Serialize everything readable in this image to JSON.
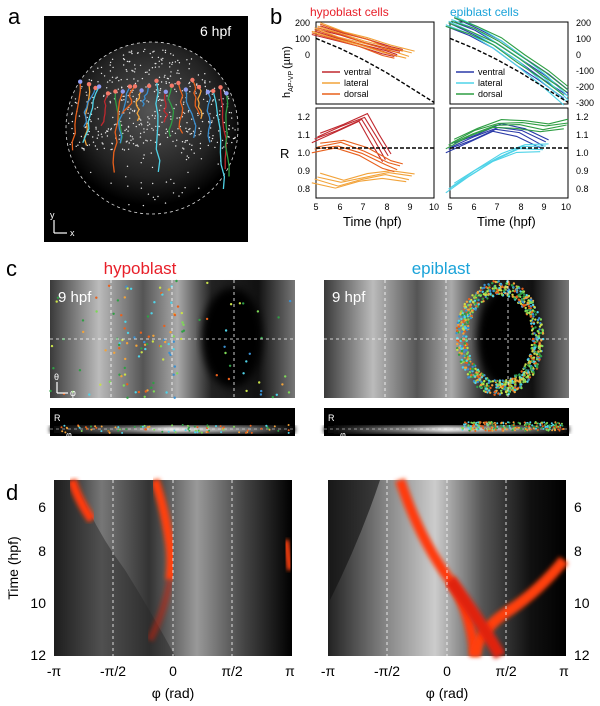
{
  "panels": {
    "a": "a",
    "b": "b",
    "c": "c",
    "d": "d"
  },
  "panel_a": {
    "time_label": "6 hpf",
    "axis_y": "y",
    "axis_x": "x"
  },
  "panel_b": {
    "hypoblast_title": "hypoblast cells",
    "epiblast_title": "epiblast cells",
    "title_colors": {
      "hypoblast": "#e8202a",
      "epiblast": "#1aa3d9"
    },
    "ylabel_top": "h",
    "ylabel_top_sub": "AP-VP",
    "ylabel_top_unit": "(µm)",
    "ylabel_bottom": "R",
    "xlabel": "Time (hpf)",
    "legend_hypoblast": [
      {
        "name": "ventral",
        "color": "#c0282e"
      },
      {
        "name": "lateral",
        "color": "#f2a33a"
      },
      {
        "name": "dorsal",
        "color": "#e8601c"
      }
    ],
    "legend_epiblast": [
      {
        "name": "ventral",
        "color": "#2a3aa8"
      },
      {
        "name": "lateral",
        "color": "#4fd3e8"
      },
      {
        "name": "dorsal",
        "color": "#2f9e44"
      }
    ],
    "top_y_ticks": [
      "200",
      "100",
      "0",
      "-100",
      "-200",
      "-300"
    ],
    "bottom_y_ticks": [
      "1.2",
      "1.1",
      "1.0",
      "0.9",
      "0.8"
    ],
    "x_ticks": [
      "5",
      "6",
      "7",
      "8",
      "9",
      "10"
    ]
  },
  "panel_c": {
    "hypoblast_title": "hypoblast",
    "epiblast_title": "epiblast",
    "time_label": "9 hpf",
    "axis_theta": "θ",
    "axis_phi": "φ",
    "axis_R": "R"
  },
  "panel_d": {
    "ylabel": "Time (hpf)",
    "xlabel": "φ (rad)",
    "y_ticks": [
      "6",
      "8",
      "10",
      "12"
    ],
    "x_ticks": [
      "-π",
      "-π/2",
      "0",
      "π/2",
      "π"
    ]
  },
  "chart_data": [
    {
      "type": "line",
      "title": "hypoblast cells",
      "xlabel": "Time (hpf)",
      "ylabel": "h AP-VP (µm)",
      "xlim": [
        5,
        10
      ],
      "ylim": [
        -300,
        200
      ],
      "series": [
        {
          "name": "ventral",
          "x": [
            5,
            6,
            7,
            8,
            8.5
          ],
          "y": [
            150,
            110,
            70,
            30,
            10
          ]
        },
        {
          "name": "lateral",
          "x": [
            5,
            6,
            7,
            8,
            9
          ],
          "y": [
            170,
            120,
            80,
            40,
            0
          ]
        },
        {
          "name": "dorsal",
          "x": [
            5,
            6,
            7,
            8,
            8.5
          ],
          "y": [
            160,
            115,
            70,
            20,
            0
          ]
        },
        {
          "x": [
            5,
            6,
            7,
            8,
            9,
            10
          ],
          "y": [
            100,
            40,
            -30,
            -110,
            -200,
            -290
          ]
        }
      ]
    },
    {
      "type": "line",
      "title": "epiblast cells",
      "xlabel": "Time (hpf)",
      "ylabel": "h AP-VP (µm)",
      "xlim": [
        5,
        10
      ],
      "ylim": [
        -300,
        200
      ],
      "series": [
        {
          "name": "ventral",
          "x": [
            5,
            6,
            7,
            8,
            9,
            10
          ],
          "y": [
            200,
            140,
            60,
            -40,
            -140,
            -240
          ]
        },
        {
          "name": "lateral",
          "x": [
            5,
            6,
            7,
            8,
            9,
            10
          ],
          "y": [
            210,
            150,
            60,
            -40,
            -160,
            -280
          ]
        },
        {
          "name": "dorsal",
          "x": [
            5,
            6,
            7,
            8,
            9,
            10
          ],
          "y": [
            200,
            150,
            80,
            -20,
            -120,
            -220
          ]
        },
        {
          "x": [
            5,
            6,
            7,
            8,
            9,
            10
          ],
          "y": [
            100,
            40,
            -30,
            -110,
            -200,
            -290
          ]
        }
      ]
    },
    {
      "type": "line",
      "xlabel": "Time (hpf)",
      "ylabel": "R",
      "xlim": [
        5,
        10
      ],
      "ylim": [
        0.75,
        1.2
      ],
      "series": [
        {
          "name": "ventral",
          "x": [
            5,
            6,
            7,
            7.5,
            8
          ],
          "y": [
            1.05,
            1.1,
            1.15,
            1.05,
            0.95
          ]
        },
        {
          "name": "lateral",
          "x": [
            5,
            6,
            7,
            8,
            9
          ],
          "y": [
            0.85,
            0.82,
            0.85,
            0.87,
            0.85
          ]
        },
        {
          "name": "dorsal",
          "x": [
            5,
            6,
            7,
            8,
            8.5
          ],
          "y": [
            1.0,
            1.02,
            0.98,
            0.92,
            0.9
          ]
        },
        {
          "x": [
            5,
            10
          ],
          "y": [
            1.0,
            1.0
          ]
        }
      ]
    },
    {
      "type": "line",
      "xlabel": "Time (hpf)",
      "ylabel": "R",
      "xlim": [
        5,
        10
      ],
      "ylim": [
        0.75,
        1.2
      ],
      "series": [
        {
          "name": "ventral",
          "x": [
            5,
            6,
            7,
            8,
            9
          ],
          "y": [
            1.0,
            1.05,
            1.1,
            1.08,
            1.02
          ]
        },
        {
          "name": "lateral",
          "x": [
            5,
            6,
            7,
            8,
            9
          ],
          "y": [
            0.8,
            0.88,
            0.95,
            1.0,
            1.0
          ]
        },
        {
          "name": "dorsal",
          "x": [
            5,
            6,
            7,
            8,
            9,
            10
          ],
          "y": [
            1.02,
            1.08,
            1.12,
            1.12,
            1.1,
            1.12
          ]
        },
        {
          "x": [
            5,
            10
          ],
          "y": [
            1.0,
            1.0
          ]
        }
      ]
    }
  ]
}
